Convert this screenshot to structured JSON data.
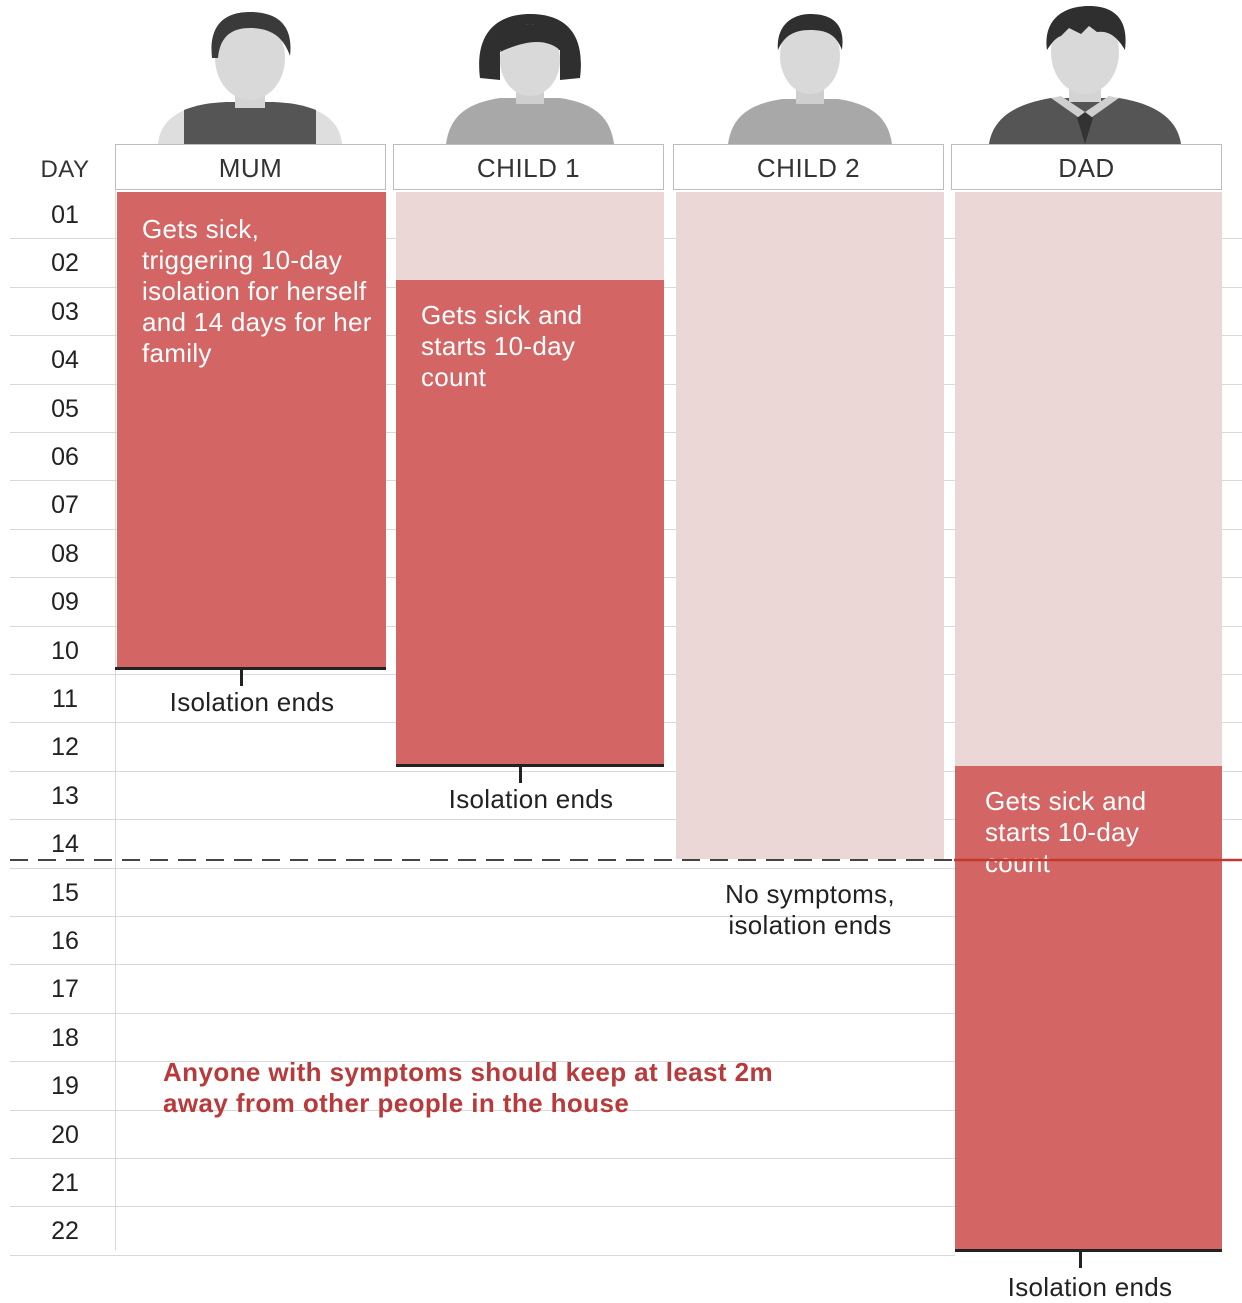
{
  "headers": {
    "day": "DAY",
    "columns": [
      {
        "label": "MUM"
      },
      {
        "label": "CHILD 1"
      },
      {
        "label": "CHILD 2"
      },
      {
        "label": "DAD"
      }
    ]
  },
  "days": [
    "01",
    "02",
    "03",
    "04",
    "05",
    "06",
    "07",
    "08",
    "09",
    "10",
    "11",
    "12",
    "13",
    "14",
    "15",
    "16",
    "17",
    "18",
    "19",
    "20",
    "21",
    "22"
  ],
  "members": [
    {
      "name": "MUM",
      "isolation_start_day": 1,
      "isolation_end_day": 10,
      "sick_start_day": 1,
      "sick_text": "Gets sick, triggering 10-day isolation for herself and 14 days for her family",
      "end_label": "Isolation ends"
    },
    {
      "name": "CHILD 1",
      "isolation_start_day": 1,
      "isolation_end_day": 12,
      "sick_start_day": 3,
      "sick_text": "Gets sick and starts 10-day count",
      "end_label": "Isolation ends"
    },
    {
      "name": "CHILD 2",
      "isolation_start_day": 1,
      "isolation_end_day": 14,
      "sick_start_day": null,
      "sick_text": "",
      "end_label": "No symptoms, isolation ends"
    },
    {
      "name": "DAD",
      "isolation_start_day": 1,
      "isolation_end_day": 22,
      "sick_start_day": 13,
      "sick_text": "Gets sick and starts 10-day count",
      "end_label": "Isolation ends"
    }
  ],
  "household_isolation_days": 14,
  "note": "Anyone with symptoms should keep at least 2m away from other people in the house",
  "colors": {
    "sick": "#d46565",
    "isolating": "#ecd7d7",
    "note": "#b83a3a",
    "cutoff_line": "#d9534f"
  }
}
